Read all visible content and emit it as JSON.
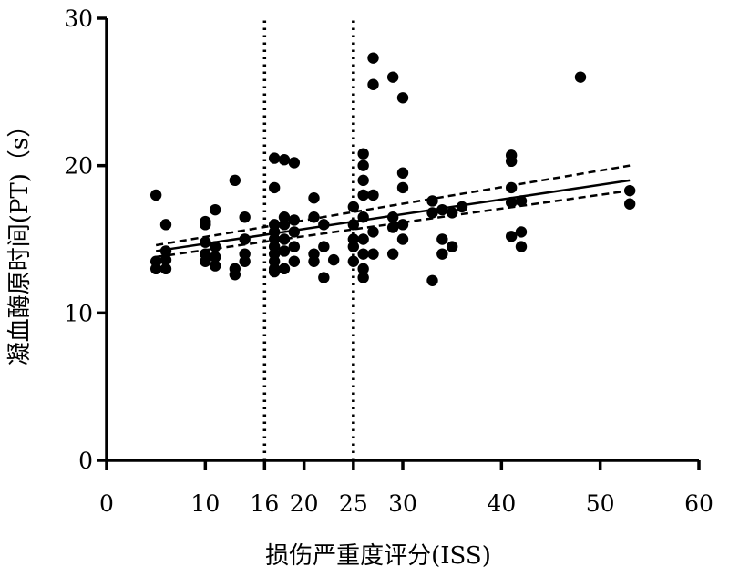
{
  "chart_data": {
    "type": "scatter",
    "title": "",
    "xlabel": "损伤严重度评分(ISS)",
    "ylabel": "凝血酶原时间(PT)（s）",
    "xlim": [
      0,
      60
    ],
    "ylim": [
      0,
      30
    ],
    "x_ticks": [
      0,
      10,
      16,
      20,
      25,
      30,
      40,
      50,
      60
    ],
    "y_ticks": [
      0,
      10,
      20,
      30
    ],
    "vertical_reference_lines": [
      16,
      25
    ],
    "grid": false,
    "legend": "none",
    "point_color": "#000000",
    "series": [
      {
        "values": [
          [
            5,
            18.0
          ],
          [
            5,
            13.5
          ],
          [
            5,
            13.0
          ],
          [
            6,
            16.0
          ],
          [
            6,
            14.2
          ],
          [
            6,
            13.0
          ],
          [
            6,
            13.6
          ],
          [
            10,
            16.0
          ],
          [
            10,
            14.8
          ],
          [
            10,
            14.0
          ],
          [
            10,
            13.5
          ],
          [
            10,
            16.2
          ],
          [
            11,
            17.0
          ],
          [
            11,
            14.5
          ],
          [
            11,
            13.8
          ],
          [
            11,
            13.2
          ],
          [
            13,
            19.0
          ],
          [
            13,
            13.0
          ],
          [
            13,
            12.6
          ],
          [
            14,
            16.5
          ],
          [
            14,
            15.0
          ],
          [
            14,
            14.0
          ],
          [
            14,
            13.5
          ],
          [
            17,
            20.5
          ],
          [
            17,
            18.5
          ],
          [
            17,
            16.0
          ],
          [
            17,
            15.5
          ],
          [
            17,
            15.0
          ],
          [
            17,
            14.5
          ],
          [
            17,
            14.0
          ],
          [
            17,
            13.5
          ],
          [
            17,
            13.0
          ],
          [
            17,
            12.8
          ],
          [
            18,
            20.4
          ],
          [
            18,
            16.5
          ],
          [
            18,
            16.0
          ],
          [
            18,
            15.0
          ],
          [
            18,
            14.2
          ],
          [
            18,
            13.0
          ],
          [
            19,
            20.2
          ],
          [
            19,
            16.3
          ],
          [
            19,
            15.5
          ],
          [
            19,
            14.5
          ],
          [
            19,
            13.5
          ],
          [
            21,
            17.8
          ],
          [
            21,
            16.5
          ],
          [
            21,
            14.0
          ],
          [
            21,
            13.5
          ],
          [
            22,
            16.0
          ],
          [
            22,
            14.5
          ],
          [
            22,
            12.4
          ],
          [
            23,
            13.6
          ],
          [
            25,
            17.2
          ],
          [
            25,
            16.0
          ],
          [
            25,
            15.0
          ],
          [
            25,
            14.5
          ],
          [
            25,
            13.5
          ],
          [
            26,
            20.8
          ],
          [
            26,
            20.0
          ],
          [
            26,
            19.0
          ],
          [
            26,
            18.0
          ],
          [
            26,
            16.5
          ],
          [
            26,
            15.0
          ],
          [
            26,
            14.0
          ],
          [
            26,
            13.0
          ],
          [
            26,
            12.4
          ],
          [
            27,
            27.3
          ],
          [
            27,
            25.5
          ],
          [
            27,
            18.0
          ],
          [
            27,
            15.5
          ],
          [
            27,
            14.0
          ],
          [
            29,
            26.0
          ],
          [
            29,
            16.5
          ],
          [
            29,
            15.8
          ],
          [
            29,
            14.0
          ],
          [
            30,
            24.6
          ],
          [
            30,
            19.5
          ],
          [
            30,
            18.5
          ],
          [
            30,
            16.0
          ],
          [
            30,
            15.0
          ],
          [
            33,
            17.6
          ],
          [
            33,
            16.8
          ],
          [
            33,
            12.2
          ],
          [
            34,
            17.0
          ],
          [
            34,
            15.0
          ],
          [
            34,
            14.0
          ],
          [
            35,
            16.8
          ],
          [
            35,
            14.5
          ],
          [
            36,
            17.2
          ],
          [
            41,
            20.7
          ],
          [
            41,
            20.3
          ],
          [
            41,
            18.5
          ],
          [
            41,
            17.5
          ],
          [
            41,
            15.2
          ],
          [
            42,
            17.6
          ],
          [
            42,
            15.5
          ],
          [
            42,
            14.5
          ],
          [
            48,
            26.0
          ],
          [
            53,
            18.3
          ],
          [
            53,
            17.4
          ]
        ]
      }
    ],
    "regression": {
      "fit_x": [
        5,
        53
      ],
      "fit_y": [
        14.2,
        19.0
      ],
      "ci_lower_y": [
        13.8,
        18.3
      ],
      "ci_upper_y": [
        14.6,
        20.0
      ]
    }
  }
}
